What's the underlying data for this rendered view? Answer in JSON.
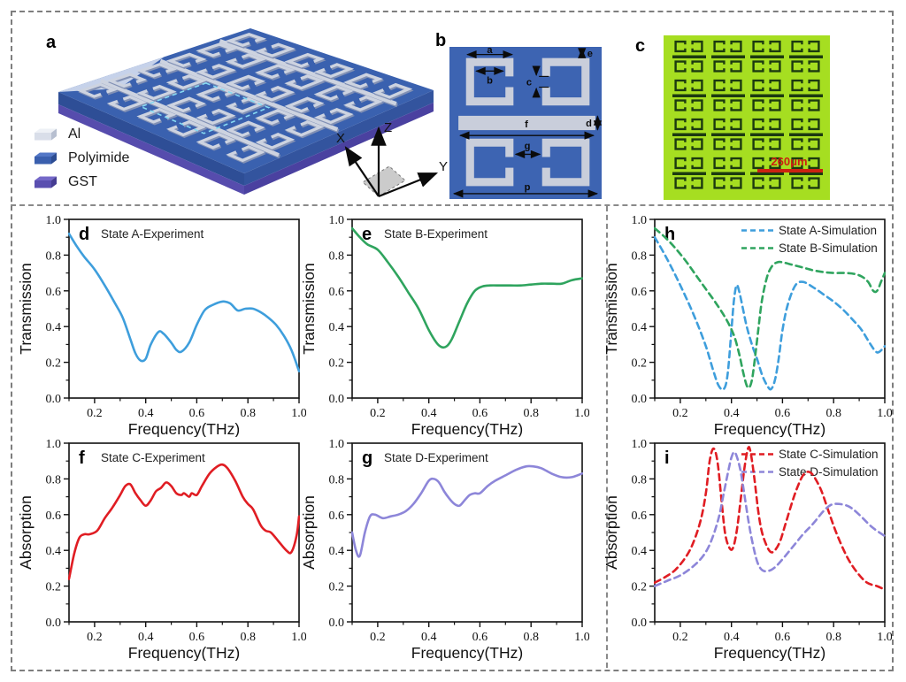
{
  "panels": {
    "a": {
      "label": "a",
      "legend": [
        {
          "name": "Al",
          "color_top": "#EEF1F6",
          "color_front": "#D9DEE9",
          "color_side": "#B7BFD0"
        },
        {
          "name": "Polyimide",
          "color_top": "#5377C6",
          "color_front": "#3A5FAE",
          "color_side": "#2C4C92"
        },
        {
          "name": "GST",
          "color_top": "#7468C8",
          "color_front": "#5A4FB0",
          "color_side": "#453C92"
        }
      ],
      "axes": {
        "x": "X",
        "y": "Y",
        "z": "Z"
      },
      "slab": {
        "top": "#3A61AF",
        "side_left": "#2E4E96",
        "side_right": "#33549E",
        "gst_left": "#564CAD",
        "gst_right": "#4A41A0",
        "metal": "#CDD3E0",
        "metal_shadow": "#8291B5",
        "corner_highlight": "#C6D2EA",
        "unit_cell_outline": "#86D9F2"
      }
    },
    "b": {
      "label": "b",
      "background": "#3D64B2",
      "metal_color": "#C9CEDB",
      "dims": {
        "a": "a",
        "b": "b",
        "c": "c",
        "d": "d",
        "e": "e",
        "f": "f",
        "g": "g",
        "p": "p"
      }
    },
    "c": {
      "label": "c",
      "background": "#A6DE21",
      "pattern_color": "#1C3A10",
      "scale_bar_label": "260μm",
      "scale_bar_color": "#CC2211"
    }
  },
  "chart_data": [
    {
      "panel": "d",
      "letter": "d",
      "type": "line",
      "annotation": "State A-Experiment",
      "xlabel": "Frequency(THz)",
      "ylabel": "Transmission",
      "xlim": [
        0.1,
        1.0
      ],
      "ylim": [
        0.0,
        1.0
      ],
      "xticks": [
        0.2,
        0.4,
        0.6,
        0.8,
        1.0
      ],
      "yticks": [
        0.0,
        0.2,
        0.4,
        0.6,
        0.8,
        1.0
      ],
      "legend": null,
      "series": [
        {
          "name": "State A-Experiment",
          "color": "#3E9EDC",
          "line_style": "solid",
          "x": [
            0.1,
            0.13,
            0.16,
            0.2,
            0.24,
            0.28,
            0.31,
            0.34,
            0.36,
            0.38,
            0.4,
            0.42,
            0.45,
            0.47,
            0.5,
            0.52,
            0.54,
            0.57,
            0.6,
            0.63,
            0.66,
            0.7,
            0.73,
            0.76,
            0.79,
            0.82,
            0.85,
            0.88,
            0.91,
            0.94,
            0.97,
            1.0
          ],
          "y": [
            0.92,
            0.85,
            0.79,
            0.72,
            0.63,
            0.53,
            0.45,
            0.33,
            0.25,
            0.21,
            0.22,
            0.3,
            0.37,
            0.36,
            0.31,
            0.27,
            0.26,
            0.31,
            0.41,
            0.49,
            0.52,
            0.54,
            0.53,
            0.49,
            0.5,
            0.5,
            0.48,
            0.45,
            0.41,
            0.35,
            0.27,
            0.15
          ]
        }
      ]
    },
    {
      "panel": "e",
      "letter": "e",
      "type": "line",
      "annotation": "State B-Experiment",
      "xlabel": "Frequency(THz)",
      "ylabel": "Transmission",
      "xlim": [
        0.1,
        1.0
      ],
      "ylim": [
        0.0,
        1.0
      ],
      "xticks": [
        0.2,
        0.4,
        0.6,
        0.8,
        1.0
      ],
      "yticks": [
        0.0,
        0.2,
        0.4,
        0.6,
        0.8,
        1.0
      ],
      "legend": null,
      "series": [
        {
          "name": "State B-Experiment",
          "color": "#2FA45E",
          "line_style": "solid",
          "x": [
            0.1,
            0.13,
            0.16,
            0.2,
            0.24,
            0.28,
            0.32,
            0.36,
            0.4,
            0.43,
            0.45,
            0.47,
            0.49,
            0.52,
            0.55,
            0.58,
            0.61,
            0.64,
            0.68,
            0.72,
            0.76,
            0.8,
            0.84,
            0.88,
            0.92,
            0.96,
            1.0
          ],
          "y": [
            0.95,
            0.9,
            0.86,
            0.83,
            0.76,
            0.68,
            0.59,
            0.5,
            0.38,
            0.31,
            0.285,
            0.29,
            0.33,
            0.43,
            0.53,
            0.6,
            0.625,
            0.63,
            0.63,
            0.63,
            0.63,
            0.635,
            0.64,
            0.64,
            0.64,
            0.66,
            0.67
          ]
        }
      ]
    },
    {
      "panel": "h",
      "letter": "h",
      "type": "line",
      "annotation": null,
      "xlabel": "Frequency(THz)",
      "ylabel": "Transmission",
      "xlim": [
        0.1,
        1.0
      ],
      "ylim": [
        0.0,
        1.0
      ],
      "xticks": [
        0.2,
        0.4,
        0.6,
        0.8,
        1.0
      ],
      "yticks": [
        0.0,
        0.2,
        0.4,
        0.6,
        0.8,
        1.0
      ],
      "legend": [
        "State A-Simulation",
        "State B-Simulation"
      ],
      "series": [
        {
          "name": "State A-Simulation",
          "color": "#3E9EDC",
          "line_style": "dashed",
          "x": [
            0.1,
            0.14,
            0.18,
            0.22,
            0.26,
            0.3,
            0.33,
            0.35,
            0.37,
            0.385,
            0.4,
            0.41,
            0.42,
            0.43,
            0.445,
            0.46,
            0.48,
            0.5,
            0.52,
            0.54,
            0.555,
            0.57,
            0.585,
            0.6,
            0.62,
            0.65,
            0.68,
            0.72,
            0.76,
            0.8,
            0.84,
            0.88,
            0.91,
            0.94,
            0.965,
            0.98,
            1.0
          ],
          "y": [
            0.9,
            0.8,
            0.69,
            0.57,
            0.44,
            0.29,
            0.15,
            0.07,
            0.05,
            0.13,
            0.38,
            0.55,
            0.63,
            0.6,
            0.5,
            0.4,
            0.3,
            0.22,
            0.13,
            0.07,
            0.05,
            0.1,
            0.22,
            0.38,
            0.52,
            0.63,
            0.65,
            0.62,
            0.58,
            0.54,
            0.49,
            0.43,
            0.38,
            0.31,
            0.26,
            0.26,
            0.29
          ]
        },
        {
          "name": "State B-Simulation",
          "color": "#2FA45E",
          "line_style": "dashed",
          "x": [
            0.1,
            0.14,
            0.18,
            0.22,
            0.26,
            0.3,
            0.34,
            0.38,
            0.41,
            0.43,
            0.445,
            0.46,
            0.47,
            0.48,
            0.49,
            0.505,
            0.52,
            0.54,
            0.56,
            0.58,
            0.6,
            0.64,
            0.68,
            0.72,
            0.76,
            0.8,
            0.84,
            0.88,
            0.91,
            0.935,
            0.955,
            0.97,
            0.985,
            1.0
          ],
          "y": [
            0.95,
            0.9,
            0.84,
            0.77,
            0.69,
            0.61,
            0.53,
            0.44,
            0.35,
            0.25,
            0.15,
            0.07,
            0.06,
            0.1,
            0.2,
            0.38,
            0.55,
            0.68,
            0.74,
            0.76,
            0.76,
            0.745,
            0.73,
            0.715,
            0.705,
            0.7,
            0.7,
            0.695,
            0.68,
            0.65,
            0.6,
            0.6,
            0.65,
            0.7
          ]
        }
      ]
    },
    {
      "panel": "f",
      "letter": "f",
      "type": "line",
      "annotation": "State C-Experiment",
      "xlabel": "Frequency(THz)",
      "ylabel": "Absorption",
      "xlim": [
        0.1,
        1.0
      ],
      "ylim": [
        0.0,
        1.0
      ],
      "xticks": [
        0.2,
        0.4,
        0.6,
        0.8,
        1.0
      ],
      "yticks": [
        0.0,
        0.2,
        0.4,
        0.6,
        0.8,
        1.0
      ],
      "legend": null,
      "series": [
        {
          "name": "State C-Experiment",
          "color": "#E01D23",
          "line_style": "solid",
          "x": [
            0.1,
            0.12,
            0.14,
            0.16,
            0.18,
            0.21,
            0.24,
            0.27,
            0.3,
            0.32,
            0.34,
            0.36,
            0.38,
            0.4,
            0.42,
            0.44,
            0.46,
            0.48,
            0.5,
            0.52,
            0.54,
            0.55,
            0.57,
            0.58,
            0.6,
            0.62,
            0.65,
            0.68,
            0.7,
            0.72,
            0.75,
            0.78,
            0.8,
            0.82,
            0.85,
            0.87,
            0.89,
            0.92,
            0.95,
            0.97,
            0.99,
            1.0
          ],
          "y": [
            0.24,
            0.38,
            0.47,
            0.49,
            0.49,
            0.51,
            0.58,
            0.64,
            0.71,
            0.76,
            0.77,
            0.72,
            0.68,
            0.65,
            0.68,
            0.73,
            0.75,
            0.78,
            0.76,
            0.72,
            0.71,
            0.72,
            0.7,
            0.72,
            0.71,
            0.76,
            0.83,
            0.87,
            0.88,
            0.86,
            0.79,
            0.7,
            0.66,
            0.63,
            0.54,
            0.51,
            0.5,
            0.45,
            0.4,
            0.39,
            0.48,
            0.59
          ]
        }
      ]
    },
    {
      "panel": "g",
      "letter": "g",
      "type": "line",
      "annotation": "State D-Experiment",
      "xlabel": "Frequency(THz)",
      "ylabel": "Absorption",
      "xlim": [
        0.1,
        1.0
      ],
      "ylim": [
        0.0,
        1.0
      ],
      "xticks": [
        0.2,
        0.4,
        0.6,
        0.8,
        1.0
      ],
      "yticks": [
        0.0,
        0.2,
        0.4,
        0.6,
        0.8,
        1.0
      ],
      "legend": null,
      "series": [
        {
          "name": "State D-Experiment",
          "color": "#8D86D9",
          "line_style": "solid",
          "x": [
            0.1,
            0.115,
            0.13,
            0.15,
            0.17,
            0.19,
            0.22,
            0.25,
            0.28,
            0.31,
            0.34,
            0.37,
            0.4,
            0.42,
            0.44,
            0.46,
            0.48,
            0.5,
            0.52,
            0.54,
            0.56,
            0.58,
            0.6,
            0.63,
            0.66,
            0.7,
            0.74,
            0.78,
            0.81,
            0.84,
            0.88,
            0.92,
            0.96,
            1.0
          ],
          "y": [
            0.5,
            0.4,
            0.37,
            0.5,
            0.59,
            0.6,
            0.58,
            0.59,
            0.6,
            0.62,
            0.66,
            0.72,
            0.79,
            0.8,
            0.78,
            0.73,
            0.69,
            0.66,
            0.65,
            0.68,
            0.71,
            0.72,
            0.72,
            0.76,
            0.79,
            0.82,
            0.85,
            0.87,
            0.87,
            0.86,
            0.83,
            0.81,
            0.81,
            0.83
          ]
        }
      ]
    },
    {
      "panel": "i",
      "letter": "i",
      "type": "line",
      "annotation": null,
      "xlabel": "Frequency(THz)",
      "ylabel": "Absorption",
      "xlim": [
        0.1,
        1.0
      ],
      "ylim": [
        0.0,
        1.0
      ],
      "xticks": [
        0.2,
        0.4,
        0.6,
        0.8,
        1.0
      ],
      "yticks": [
        0.0,
        0.2,
        0.4,
        0.6,
        0.8,
        1.0
      ],
      "legend": [
        "State C-Simulation",
        "State D-Simulation"
      ],
      "series": [
        {
          "name": "State C-Simulation",
          "color": "#E01D23",
          "line_style": "dashed",
          "x": [
            0.1,
            0.14,
            0.18,
            0.22,
            0.25,
            0.28,
            0.3,
            0.315,
            0.33,
            0.345,
            0.36,
            0.375,
            0.39,
            0.405,
            0.42,
            0.435,
            0.45,
            0.465,
            0.475,
            0.49,
            0.505,
            0.52,
            0.54,
            0.555,
            0.57,
            0.59,
            0.61,
            0.64,
            0.66,
            0.68,
            0.7,
            0.72,
            0.75,
            0.78,
            0.81,
            0.85,
            0.89,
            0.93,
            0.97,
            1.0
          ],
          "y": [
            0.22,
            0.25,
            0.29,
            0.36,
            0.44,
            0.57,
            0.72,
            0.9,
            0.97,
            0.9,
            0.7,
            0.5,
            0.42,
            0.41,
            0.5,
            0.67,
            0.85,
            0.97,
            0.95,
            0.8,
            0.62,
            0.5,
            0.42,
            0.39,
            0.4,
            0.45,
            0.54,
            0.68,
            0.76,
            0.82,
            0.84,
            0.82,
            0.74,
            0.62,
            0.5,
            0.37,
            0.28,
            0.22,
            0.2,
            0.18
          ]
        },
        {
          "name": "State D-Simulation",
          "color": "#8D86D9",
          "line_style": "dashed",
          "x": [
            0.1,
            0.15,
            0.2,
            0.25,
            0.29,
            0.32,
            0.35,
            0.37,
            0.39,
            0.4,
            0.41,
            0.42,
            0.435,
            0.45,
            0.465,
            0.48,
            0.5,
            0.52,
            0.545,
            0.57,
            0.6,
            0.64,
            0.68,
            0.72,
            0.76,
            0.79,
            0.82,
            0.86,
            0.9,
            0.95,
            1.0
          ],
          "y": [
            0.2,
            0.23,
            0.26,
            0.31,
            0.37,
            0.45,
            0.58,
            0.72,
            0.86,
            0.92,
            0.95,
            0.93,
            0.85,
            0.72,
            0.58,
            0.46,
            0.34,
            0.29,
            0.285,
            0.305,
            0.35,
            0.42,
            0.49,
            0.55,
            0.62,
            0.655,
            0.66,
            0.645,
            0.6,
            0.53,
            0.48
          ]
        }
      ]
    }
  ]
}
